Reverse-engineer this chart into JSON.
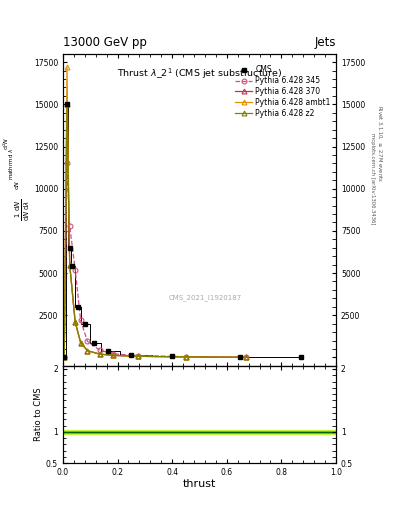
{
  "title_top": "13000 GeV pp",
  "title_right": "Jets",
  "plot_title": "Thrust $\\lambda\\_2^1$ (CMS jet substructure)",
  "xlabel": "thrust",
  "ylabel_main": "$\\frac{1}{\\mathrm{d}N}\\frac{\\mathrm{d}N}{\\mathrm{d}\\lambda}$",
  "ylabel_ratio": "Ratio to CMS",
  "watermark": "CMS_2021_I1920187",
  "xlim": [
    0.0,
    1.0
  ],
  "ylim_main": [
    -500,
    18000
  ],
  "ylim_ratio": [
    0.5,
    2.05
  ],
  "yticks_main": [
    0,
    2500,
    5000,
    7500,
    10000,
    12500,
    15000,
    17500
  ],
  "yticks_ratio": [
    0.5,
    1.0,
    2.0
  ],
  "cms_x": [
    0.005,
    0.015,
    0.025,
    0.035,
    0.055,
    0.08,
    0.115,
    0.165,
    0.25,
    0.4,
    0.65,
    0.87
  ],
  "cms_y": [
    0,
    15000,
    6500,
    5400,
    3000,
    2000,
    850,
    380,
    160,
    60,
    20,
    5
  ],
  "p345_x": [
    0.005,
    0.015,
    0.025,
    0.045,
    0.065,
    0.09,
    0.135,
    0.185,
    0.275,
    0.45,
    0.67
  ],
  "p345_y": [
    0,
    11500,
    7800,
    5200,
    2200,
    950,
    430,
    210,
    110,
    45,
    15
  ],
  "p370_x": [
    0.005,
    0.015,
    0.025,
    0.045,
    0.065,
    0.09,
    0.135,
    0.185,
    0.275,
    0.45,
    0.67
  ],
  "p370_y": [
    0,
    15000,
    5500,
    2100,
    880,
    395,
    195,
    120,
    65,
    28,
    8
  ],
  "pambt1_x": [
    0.005,
    0.015,
    0.025,
    0.045,
    0.065,
    0.09,
    0.135,
    0.185,
    0.275,
    0.45,
    0.67
  ],
  "pambt1_y": [
    0,
    17200,
    5500,
    2100,
    880,
    395,
    195,
    120,
    65,
    28,
    8
  ],
  "pz2_x": [
    0.005,
    0.015,
    0.025,
    0.045,
    0.065,
    0.09,
    0.135,
    0.185,
    0.275,
    0.45,
    0.67
  ],
  "pz2_y": [
    0,
    15000,
    5500,
    2100,
    880,
    395,
    195,
    120,
    65,
    28,
    8
  ],
  "color_cms": "#000000",
  "color_p345": "#d05080",
  "color_p370": "#c03050",
  "color_pambt1": "#e09000",
  "color_pz2": "#808000",
  "color_ratio_band_outer": "#d4ff50",
  "color_ratio_band_inner": "#90cc00",
  "color_ratio_line": "#006600"
}
